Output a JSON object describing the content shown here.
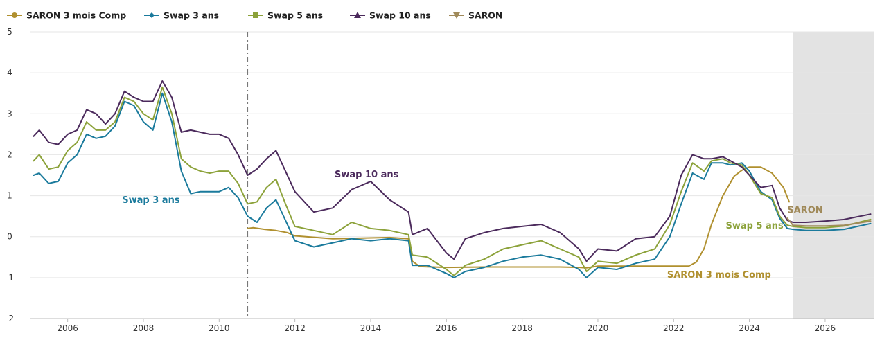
{
  "chart_data": {
    "type": "line",
    "title": "",
    "xlabel": "",
    "ylabel": "",
    "xlim": [
      2005.0,
      2027.3
    ],
    "ylim": [
      -2,
      5
    ],
    "x_ticks": [
      2006,
      2008,
      2010,
      2012,
      2014,
      2016,
      2018,
      2020,
      2022,
      2024,
      2026
    ],
    "x_tick_labels": [
      "2006",
      "2008",
      "2010",
      "2012",
      "2014",
      "2016",
      "2018",
      "2020",
      "2022",
      "2024",
      "2026"
    ],
    "y_ticks": [
      -2,
      -1,
      0,
      1,
      2,
      3,
      4,
      5
    ],
    "y_tick_labels": [
      "-2",
      "-1",
      "0",
      "1",
      "2",
      "3",
      "4",
      "5"
    ],
    "grid": "horizontal",
    "legend_position": "top-left",
    "vertical_marker_x": 2010.75,
    "forecast_shade_from": 2025.15,
    "series": [
      {
        "name": "SARON 3 mois Comp",
        "color": "#B0902F",
        "marker": "circle",
        "x": [
          2010.75,
          2010.9,
          2011.2,
          2011.5,
          2011.8,
          2012.0,
          2013.0,
          2014.0,
          2014.5,
          2015.0,
          2015.1,
          2015.3,
          2016.0,
          2017.0,
          2018.0,
          2019.0,
          2019.5,
          2019.7,
          2020.0,
          2021.0,
          2022.0,
          2022.4,
          2022.6,
          2022.8,
          2023.0,
          2023.3,
          2023.6,
          2023.8,
          2024.0,
          2024.3,
          2024.6,
          2024.9,
          2025.05
        ],
        "y": [
          0.2,
          0.22,
          0.18,
          0.15,
          0.1,
          0.02,
          -0.05,
          -0.03,
          -0.02,
          -0.05,
          -0.6,
          -0.73,
          -0.75,
          -0.74,
          -0.74,
          -0.74,
          -0.75,
          -0.76,
          -0.72,
          -0.72,
          -0.72,
          -0.72,
          -0.62,
          -0.3,
          0.3,
          1.0,
          1.48,
          1.62,
          1.7,
          1.7,
          1.55,
          1.2,
          0.85
        ]
      },
      {
        "name": "Swap 3 ans",
        "color": "#1A7A9C",
        "marker": "diamond",
        "x": [
          2005.1,
          2005.25,
          2005.5,
          2005.75,
          2006.0,
          2006.25,
          2006.5,
          2006.75,
          2007.0,
          2007.25,
          2007.5,
          2007.75,
          2008.0,
          2008.25,
          2008.5,
          2008.75,
          2009.0,
          2009.25,
          2009.5,
          2009.75,
          2010.0,
          2010.25,
          2010.5,
          2010.75,
          2011.0,
          2011.25,
          2011.5,
          2011.75,
          2012.0,
          2012.5,
          2013.0,
          2013.5,
          2014.0,
          2014.5,
          2015.0,
          2015.1,
          2015.5,
          2016.0,
          2016.2,
          2016.5,
          2017.0,
          2017.5,
          2018.0,
          2018.5,
          2019.0,
          2019.5,
          2019.7,
          2020.0,
          2020.5,
          2021.0,
          2021.5,
          2021.9,
          2022.2,
          2022.5,
          2022.8,
          2023.0,
          2023.3,
          2023.5,
          2023.8,
          2024.0,
          2024.3,
          2024.6,
          2024.8,
          2025.0,
          2025.15,
          2025.5,
          2026.0,
          2026.5,
          2027.2
        ],
        "y": [
          1.5,
          1.55,
          1.3,
          1.35,
          1.8,
          2.0,
          2.5,
          2.4,
          2.45,
          2.7,
          3.3,
          3.2,
          2.8,
          2.6,
          3.5,
          2.8,
          1.6,
          1.05,
          1.1,
          1.1,
          1.1,
          1.2,
          0.95,
          0.5,
          0.35,
          0.7,
          0.9,
          0.4,
          -0.1,
          -0.25,
          -0.15,
          -0.05,
          -0.1,
          -0.05,
          -0.1,
          -0.7,
          -0.7,
          -0.9,
          -1.0,
          -0.85,
          -0.75,
          -0.6,
          -0.5,
          -0.45,
          -0.55,
          -0.8,
          -1.0,
          -0.75,
          -0.8,
          -0.65,
          -0.55,
          0.0,
          0.8,
          1.55,
          1.4,
          1.8,
          1.8,
          1.75,
          1.8,
          1.6,
          1.1,
          0.9,
          0.45,
          0.2,
          0.18,
          0.15,
          0.15,
          0.18,
          0.32
        ]
      },
      {
        "name": "Swap 5 ans",
        "color": "#8CA23A",
        "marker": "square",
        "x": [
          2005.1,
          2005.25,
          2005.5,
          2005.75,
          2006.0,
          2006.25,
          2006.5,
          2006.75,
          2007.0,
          2007.25,
          2007.5,
          2007.75,
          2008.0,
          2008.25,
          2008.5,
          2008.75,
          2009.0,
          2009.25,
          2009.5,
          2009.75,
          2010.0,
          2010.25,
          2010.5,
          2010.75,
          2011.0,
          2011.25,
          2011.5,
          2011.75,
          2012.0,
          2012.5,
          2013.0,
          2013.5,
          2014.0,
          2014.5,
          2015.0,
          2015.1,
          2015.5,
          2016.0,
          2016.2,
          2016.5,
          2017.0,
          2017.5,
          2018.0,
          2018.5,
          2019.0,
          2019.5,
          2019.7,
          2020.0,
          2020.5,
          2021.0,
          2021.5,
          2021.9,
          2022.2,
          2022.5,
          2022.8,
          2023.0,
          2023.3,
          2023.5,
          2023.8,
          2024.0,
          2024.3,
          2024.6,
          2024.8,
          2025.0,
          2025.15,
          2025.5,
          2026.0,
          2026.5,
          2027.2
        ],
        "y": [
          1.85,
          2.0,
          1.65,
          1.7,
          2.1,
          2.3,
          2.8,
          2.6,
          2.6,
          2.8,
          3.4,
          3.3,
          3.0,
          2.85,
          3.65,
          3.0,
          1.9,
          1.7,
          1.6,
          1.55,
          1.6,
          1.6,
          1.3,
          0.8,
          0.85,
          1.2,
          1.4,
          0.8,
          0.25,
          0.15,
          0.05,
          0.35,
          0.2,
          0.15,
          0.05,
          -0.45,
          -0.5,
          -0.8,
          -0.95,
          -0.7,
          -0.55,
          -0.3,
          -0.2,
          -0.1,
          -0.3,
          -0.5,
          -0.85,
          -0.6,
          -0.65,
          -0.45,
          -0.3,
          0.3,
          1.1,
          1.8,
          1.6,
          1.85,
          1.9,
          1.8,
          1.75,
          1.5,
          1.05,
          0.95,
          0.5,
          0.28,
          0.25,
          0.22,
          0.22,
          0.26,
          0.42
        ]
      },
      {
        "name": "Swap 10 ans",
        "color": "#4B2A5C",
        "marker": "triangle-up",
        "x": [
          2005.1,
          2005.25,
          2005.5,
          2005.75,
          2006.0,
          2006.25,
          2006.5,
          2006.75,
          2007.0,
          2007.25,
          2007.5,
          2007.75,
          2008.0,
          2008.25,
          2008.5,
          2008.75,
          2009.0,
          2009.25,
          2009.5,
          2009.75,
          2010.0,
          2010.25,
          2010.5,
          2010.75,
          2011.0,
          2011.25,
          2011.5,
          2011.75,
          2012.0,
          2012.5,
          2013.0,
          2013.5,
          2014.0,
          2014.5,
          2015.0,
          2015.1,
          2015.5,
          2016.0,
          2016.2,
          2016.5,
          2017.0,
          2017.5,
          2018.0,
          2018.5,
          2019.0,
          2019.5,
          2019.7,
          2020.0,
          2020.5,
          2021.0,
          2021.5,
          2021.9,
          2022.2,
          2022.5,
          2022.8,
          2023.0,
          2023.3,
          2023.5,
          2023.8,
          2024.0,
          2024.3,
          2024.6,
          2024.8,
          2025.0,
          2025.15,
          2025.5,
          2026.0,
          2026.5,
          2027.2
        ],
        "y": [
          2.45,
          2.6,
          2.3,
          2.25,
          2.5,
          2.6,
          3.1,
          3.0,
          2.75,
          3.0,
          3.55,
          3.4,
          3.3,
          3.3,
          3.8,
          3.4,
          2.55,
          2.6,
          2.55,
          2.5,
          2.5,
          2.4,
          2.0,
          1.5,
          1.65,
          1.9,
          2.1,
          1.6,
          1.1,
          0.6,
          0.7,
          1.15,
          1.35,
          0.9,
          0.6,
          0.05,
          0.2,
          -0.4,
          -0.55,
          -0.05,
          0.1,
          0.2,
          0.25,
          0.3,
          0.1,
          -0.3,
          -0.6,
          -0.3,
          -0.35,
          -0.05,
          0.0,
          0.5,
          1.5,
          2.0,
          1.9,
          1.9,
          1.95,
          1.85,
          1.7,
          1.5,
          1.2,
          1.25,
          0.7,
          0.4,
          0.35,
          0.35,
          0.38,
          0.42,
          0.55
        ]
      },
      {
        "name": "SARON",
        "color": "#A08A5A",
        "marker": "triangle-down",
        "x": [
          2025.0,
          2025.15,
          2025.5,
          2026.0,
          2026.5,
          2027.2
        ],
        "y": [
          0.45,
          0.28,
          0.26,
          0.26,
          0.28,
          0.38
        ]
      }
    ],
    "annotations": [
      {
        "text": "Swap 10 ans",
        "series": "Swap 10 ans",
        "color": "#4B2A5C"
      },
      {
        "text": "Swap 3 ans",
        "series": "Swap 3 ans",
        "color": "#1A7A9C"
      },
      {
        "text": "SARON",
        "series": "SARON",
        "color": "#A08A5A"
      },
      {
        "text": "Swap 5 ans",
        "series": "Swap 5 ans",
        "color": "#8CA23A"
      },
      {
        "text": "SARON 3 mois Comp",
        "series": "SARON 3 mois Comp",
        "color": "#B0902F"
      }
    ]
  }
}
